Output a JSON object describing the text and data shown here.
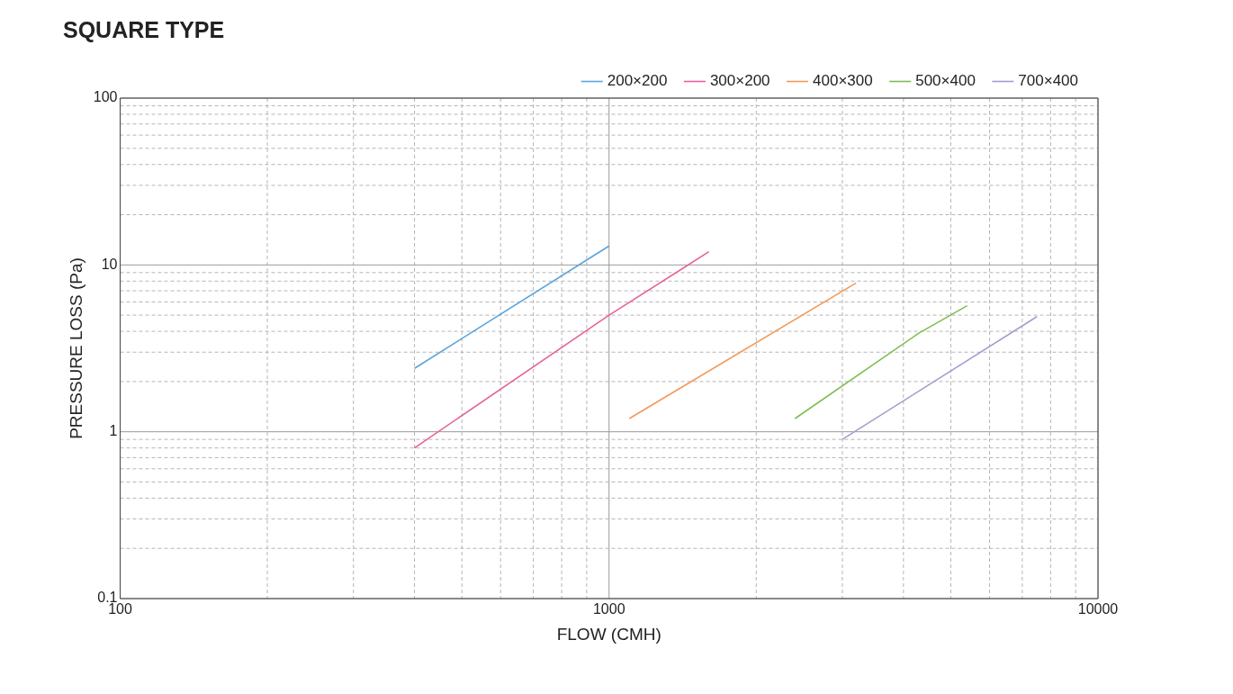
{
  "chart_data": {
    "type": "line",
    "title": "SQUARE TYPE",
    "xlabel": "FLOW (CMH)",
    "ylabel": "PRESSURE LOSS (Pa)",
    "log": "xy",
    "grid": true,
    "legend": "top right",
    "xlim": [
      100,
      10000
    ],
    "ylim": [
      0.1,
      100
    ],
    "xticks": [
      100,
      {
        "value": 200,
        "label": null
      },
      {
        "value": 300,
        "label": null
      },
      {
        "value": 400,
        "label": null
      },
      {
        "value": 500,
        "label": null
      },
      {
        "value": 600,
        "label": null
      },
      {
        "value": 700,
        "label": null
      },
      {
        "value": 800,
        "label": null
      },
      {
        "value": 900,
        "label": null
      },
      1000,
      {
        "value": 2000,
        "label": null
      },
      {
        "value": 3000,
        "label": null
      },
      {
        "value": 4000,
        "label": null
      },
      {
        "value": 5000,
        "label": null
      },
      {
        "value": 6000,
        "label": null
      },
      {
        "value": 7000,
        "label": null
      },
      {
        "value": 8000,
        "label": null
      },
      {
        "value": 9000,
        "label": null
      },
      10000
    ],
    "yticks": [
      0.1,
      {
        "value": 0.2,
        "label": null
      },
      {
        "value": 0.3,
        "label": null
      },
      {
        "value": 0.4,
        "label": null
      },
      {
        "value": 0.5,
        "label": null
      },
      {
        "value": 0.6,
        "label": null
      },
      {
        "value": 0.7,
        "label": null
      },
      {
        "value": 0.8,
        "label": null
      },
      {
        "value": 0.9,
        "label": null
      },
      1,
      {
        "value": 2,
        "label": null
      },
      {
        "value": 3,
        "label": null
      },
      {
        "value": 4,
        "label": null
      },
      {
        "value": 5,
        "label": null
      },
      {
        "value": 6,
        "label": null
      },
      {
        "value": 7,
        "label": null
      },
      {
        "value": 8,
        "label": null
      },
      {
        "value": 9,
        "label": null
      },
      10,
      {
        "value": 20,
        "label": null
      },
      {
        "value": 30,
        "label": null
      },
      {
        "value": 40,
        "label": null
      },
      {
        "value": 50,
        "label": null
      },
      {
        "value": 60,
        "label": null
      },
      {
        "value": 70,
        "label": null
      },
      {
        "value": 80,
        "label": null
      },
      {
        "value": 90,
        "label": null
      },
      100
    ],
    "series": [
      {
        "name": "200×200",
        "color": "#5aa4dc",
        "x": [
          400,
          1000
        ],
        "values": [
          2.4,
          13
        ]
      },
      {
        "name": "300×200",
        "color": "#e8609c",
        "x": [
          400,
          1000,
          1600
        ],
        "values": [
          0.8,
          5,
          12
        ]
      },
      {
        "name": "400×300",
        "color": "#f39a5a",
        "x": [
          1100,
          3200
        ],
        "values": [
          1.2,
          7.8
        ]
      },
      {
        "name": "500×400",
        "color": "#7dbd52",
        "x": [
          2400,
          4300,
          5400
        ],
        "values": [
          1.2,
          3.9,
          5.7
        ]
      },
      {
        "name": "700×400",
        "color": "#a89bd0",
        "x": [
          3000,
          7500
        ],
        "values": [
          0.9,
          4.9
        ]
      }
    ]
  }
}
